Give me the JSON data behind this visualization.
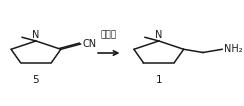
{
  "background_color": "#ffffff",
  "arrow_label": "催化剂",
  "compound_left_label": "5",
  "compound_right_label": "1",
  "figsize": [
    2.44,
    1.06
  ],
  "dpi": 100,
  "text_color": "#1a1a1a",
  "line_color": "#1a1a1a",
  "font_size_label": 7.5,
  "font_size_arrow_label": 6.5,
  "font_size_chem": 7.0,
  "font_size_NH2": 7.0
}
